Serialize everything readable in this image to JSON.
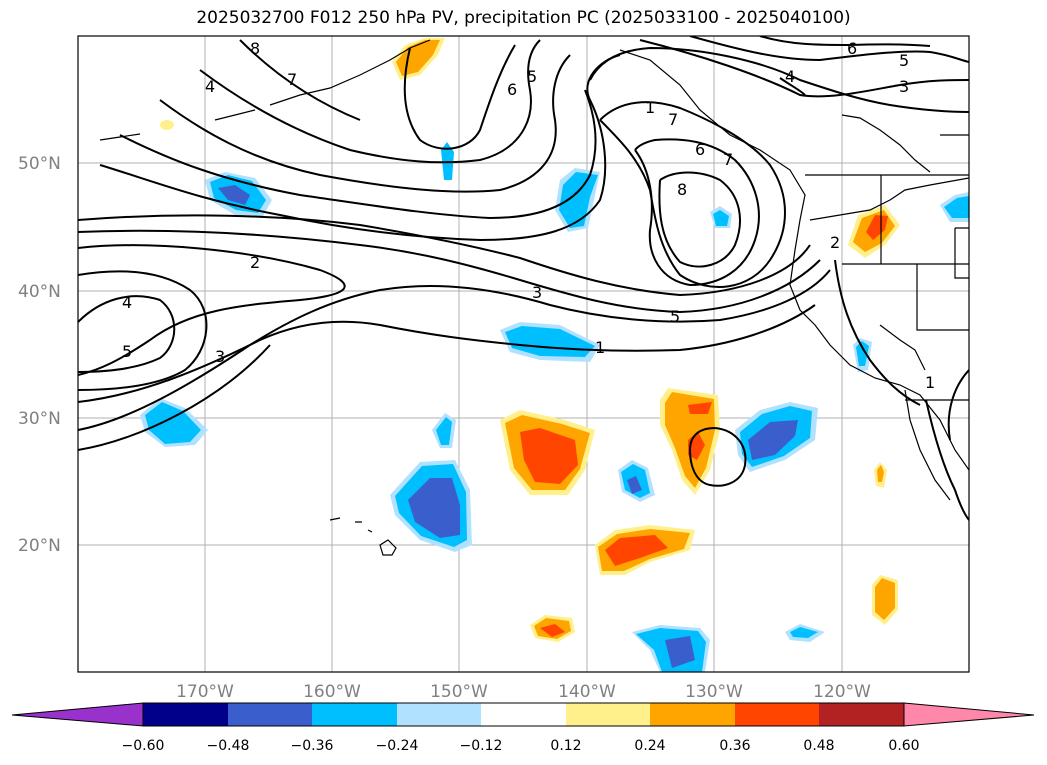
{
  "title": "2025032700 F012 250 hPa PV, precipitation PC (2025033100 - 2025040100)",
  "map": {
    "lat_labels": [
      "50°N",
      "40°N",
      "30°N",
      "20°N"
    ],
    "lon_labels": [
      "170°W",
      "160°W",
      "150°W",
      "140°W",
      "130°W",
      "120°W"
    ],
    "contour_labels": [
      "8",
      "7",
      "4",
      "6",
      "5",
      "6",
      "5",
      "4",
      "3",
      "1",
      "7",
      "6",
      "7",
      "8",
      "2",
      "4",
      "5",
      "3",
      "2",
      "3",
      "5",
      "1",
      "1"
    ]
  },
  "colorbar": {
    "ticks": [
      "−0.60",
      "−0.48",
      "−0.36",
      "−0.24",
      "−0.12",
      "0.12",
      "0.24",
      "0.36",
      "0.48",
      "0.60"
    ],
    "colors": {
      "under": "#9932cc",
      "b1": "#00008b",
      "b2": "#3a5fcd",
      "b3": "#00bfff",
      "b4": "#b0e2ff",
      "neutral": "#ffffff",
      "r1": "#fff08c",
      "r2": "#ffa500",
      "r3": "#ff4500",
      "r4": "#b22222",
      "over": "#ff88aa"
    }
  }
}
